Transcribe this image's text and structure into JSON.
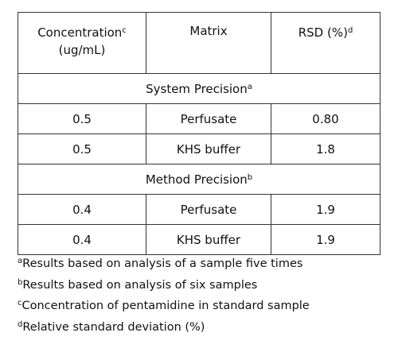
{
  "table": {
    "header": [
      {
        "label": "Concentration",
        "note": "c",
        "unit": "(ug/mL)"
      },
      {
        "label": "Matrix"
      },
      {
        "label": "RSD (%)",
        "note": "d"
      }
    ],
    "sections": [
      {
        "title": "System Precision",
        "note": "a",
        "rows": [
          [
            "0.5",
            "Perfusate",
            "0.80"
          ],
          [
            "0.5",
            "KHS buffer",
            "1.8"
          ]
        ]
      },
      {
        "title": "Method Precision",
        "note": "b",
        "rows": [
          [
            "0.4",
            "Perfusate",
            "1.9"
          ],
          [
            "0.4",
            "KHS buffer",
            "1.9"
          ]
        ]
      }
    ]
  },
  "footnotes": [
    {
      "mark": "a",
      "text": "Results based on analysis of a sample five times"
    },
    {
      "mark": "b",
      "text": "Results based on analysis of six samples"
    },
    {
      "mark": "c",
      "text": "Concentration of pentamidine in standard sample"
    },
    {
      "mark": "d",
      "text": "Relative standard deviation (%)"
    }
  ]
}
